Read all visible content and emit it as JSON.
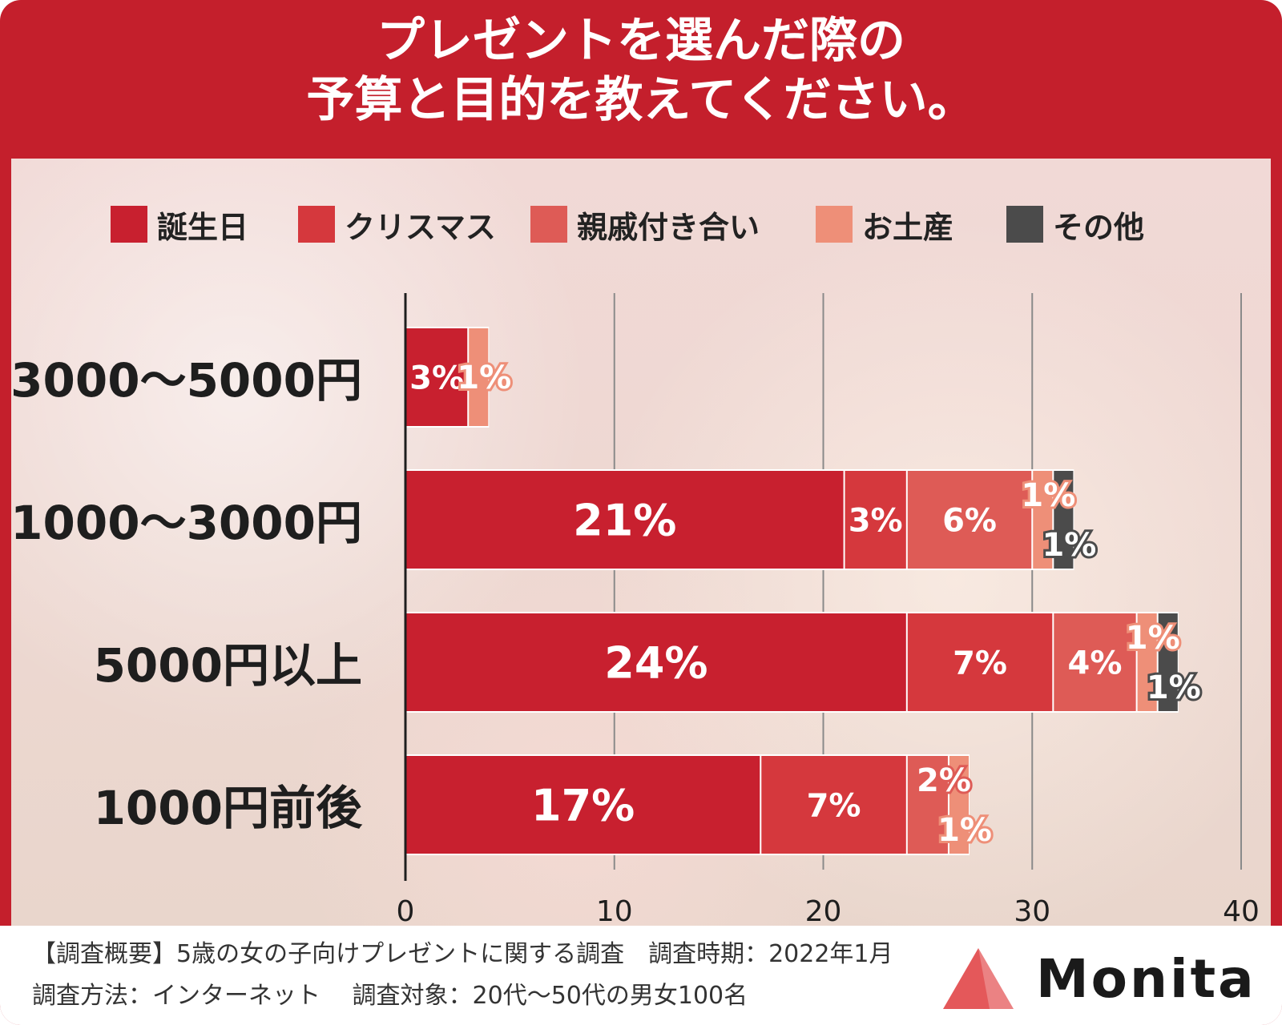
{
  "title_lines": [
    "プレゼントを選んだ際の",
    "予算と目的を教えてください。"
  ],
  "colors": {
    "frame": "#c41f2c",
    "birthday": "#c8202f",
    "christmas": "#d5383d",
    "relatives": "#de5b56",
    "souvenir": "#ee8f78",
    "other": "#4b4b4b"
  },
  "chart_data": {
    "type": "bar",
    "orientation": "horizontal",
    "stacked": true,
    "title": "プレゼントを選んだ際の予算と目的を教えてください。",
    "categories": [
      "3000〜5000円",
      "1000〜3000円",
      "5000円以上",
      "1000円前後"
    ],
    "series": [
      {
        "name": "誕生日",
        "color": "#c8202f",
        "values": [
          3,
          21,
          24,
          17
        ]
      },
      {
        "name": "クリスマス",
        "color": "#d5383d",
        "values": [
          0,
          3,
          7,
          7
        ]
      },
      {
        "name": "親戚付き合い",
        "color": "#de5b56",
        "values": [
          0,
          6,
          4,
          2
        ]
      },
      {
        "name": "お土産",
        "color": "#ee8f78",
        "values": [
          1,
          1,
          1,
          1
        ]
      },
      {
        "name": "その他",
        "color": "#4b4b4b",
        "values": [
          0,
          1,
          1,
          0
        ]
      }
    ],
    "value_suffix": "%",
    "xlim": [
      0,
      40
    ],
    "xticks": [
      0,
      10,
      20,
      30,
      40
    ],
    "grid": true,
    "legend": "top"
  },
  "footer": {
    "line1": "【調査概要】5歳の女の子向けプレゼントに関する調査　調査時期：2022年1月",
    "line2": "調査方法：インターネット　 調査対象：20代〜50代の男女100名"
  },
  "logo": {
    "text": "Monita",
    "mark_color": "#e4585a"
  }
}
